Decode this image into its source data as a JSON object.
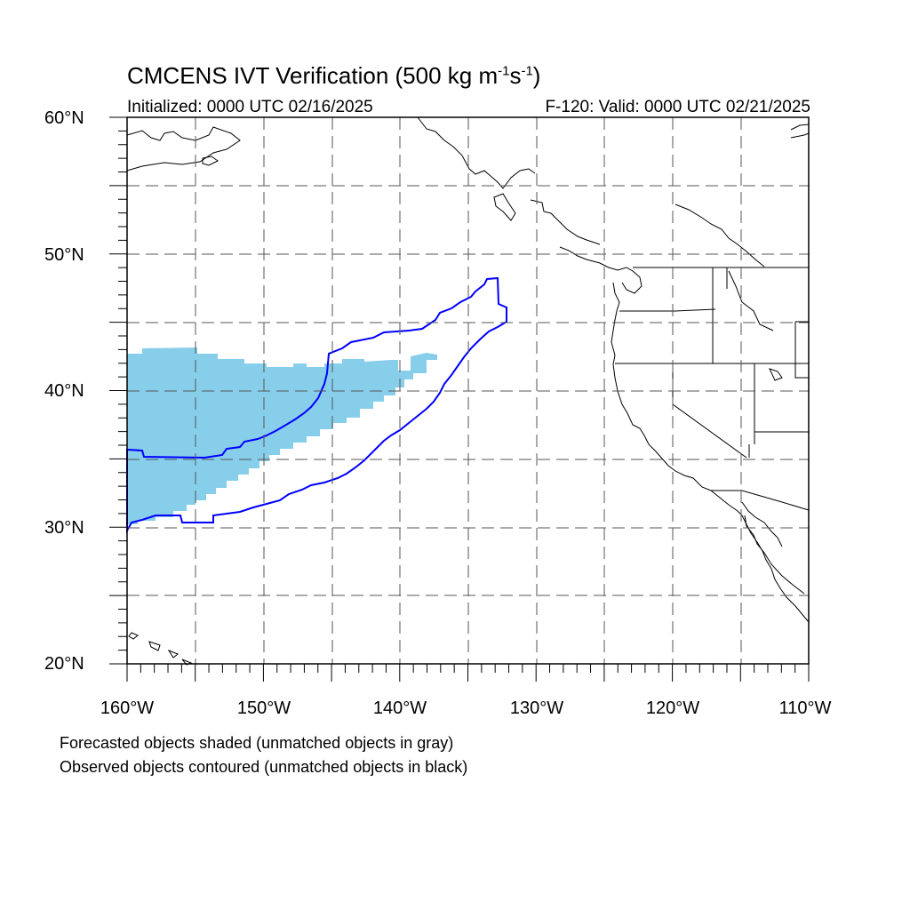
{
  "title": {
    "main": "CMCENS IVT Verification (500 kg m",
    "sup1": "-1",
    "mid": "s",
    "sup2": "-1",
    "end": ")"
  },
  "initialized": "Initialized: 0000 UTC 02/16/2025",
  "valid": "F-120: Valid: 0000 UTC 02/21/2025",
  "lat_labels": [
    "60°N",
    "50°N",
    "40°N",
    "30°N",
    "20°N"
  ],
  "lon_labels": [
    "160°W",
    "150°W",
    "140°W",
    "130°W",
    "120°W",
    "110°W"
  ],
  "captions": [
    "Forecasted objects shaded (unmatched objects in gray)",
    "Observed objects contoured (unmatched objects in black)"
  ],
  "map": {
    "extent": {
      "lon_min": -160,
      "lon_max": -110,
      "lat_min": 20,
      "lat_max": 60
    },
    "forecast_object_color": "#87ceeb",
    "observed_contour_color": "#0000ff",
    "coastline_color": "#000000",
    "grid_style": "dashed"
  }
}
